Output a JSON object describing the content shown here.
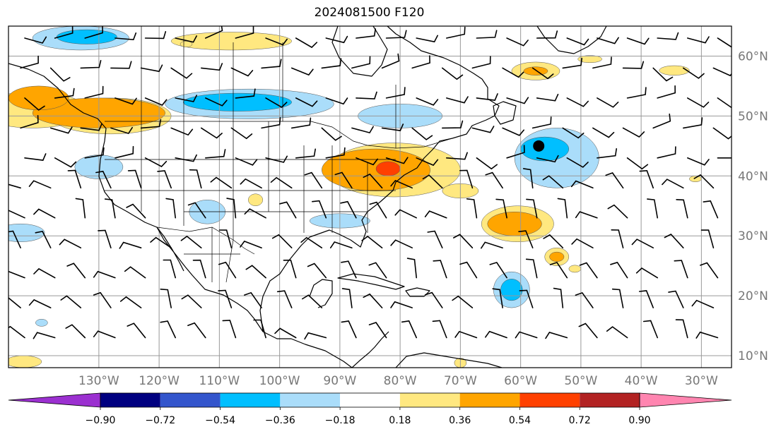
{
  "title": "2024081500 F120",
  "map": {
    "projection": "plate-carree",
    "lon_range": [
      -145,
      -25
    ],
    "lat_range": [
      8,
      65
    ],
    "latitude_labels": [
      "60°N",
      "50°N",
      "40°N",
      "30°N",
      "20°N",
      "10°N"
    ],
    "latitude_values": [
      60,
      50,
      40,
      30,
      20,
      10
    ],
    "longitude_labels": [
      "130°W",
      "120°W",
      "110°W",
      "100°W",
      "90°W",
      "80°W",
      "70°W",
      "60°W",
      "50°W",
      "40°W",
      "30°W"
    ],
    "longitude_values": [
      -130,
      -120,
      -110,
      -100,
      -90,
      -80,
      -70,
      -60,
      -50,
      -40,
      -30
    ],
    "marker": {
      "lon": -57,
      "lat": 45
    }
  },
  "colorbar": {
    "tick_labels": [
      "−0.90",
      "−0.72",
      "−0.54",
      "−0.36",
      "−0.18",
      "0.18",
      "0.36",
      "0.54",
      "0.72",
      "0.90"
    ],
    "colors": [
      "#9b30d0",
      "#000080",
      "#3355cc",
      "#00bfff",
      "#aaddfa",
      "#ffffff",
      "#ffe880",
      "#ffa500",
      "#ff4000",
      "#b22222",
      "#ff85b0"
    ]
  },
  "anomaly_regions": [
    {
      "color": "#ffe880",
      "cx": -141,
      "cy": 51,
      "rx": 9,
      "ry": 3
    },
    {
      "color": "#ffe880",
      "cx": -128,
      "cy": 50,
      "rx": 10,
      "ry": 3
    },
    {
      "color": "#ffa500",
      "cx": -130,
      "cy": 50.5,
      "rx": 11,
      "ry": 2.5
    },
    {
      "color": "#ffa500",
      "cx": -140,
      "cy": 53,
      "rx": 5,
      "ry": 2
    },
    {
      "color": "#ffe880",
      "cx": -108,
      "cy": 62.5,
      "rx": 10,
      "ry": 1.5
    },
    {
      "color": "#aaddfa",
      "cx": -133,
      "cy": 63,
      "rx": 8,
      "ry": 2
    },
    {
      "color": "#00bfff",
      "cx": -132,
      "cy": 63.2,
      "rx": 5,
      "ry": 1.2
    },
    {
      "color": "#aaddfa",
      "cx": -105,
      "cy": 52,
      "rx": 14,
      "ry": 2.5
    },
    {
      "color": "#00bfff",
      "cx": -107,
      "cy": 52.3,
      "rx": 9,
      "ry": 1.5
    },
    {
      "color": "#aaddfa",
      "cx": -80,
      "cy": 50,
      "rx": 7,
      "ry": 2
    },
    {
      "color": "#aaddfa",
      "cx": -130,
      "cy": 41.5,
      "rx": 4,
      "ry": 2
    },
    {
      "color": "#ffe880",
      "cx": -81,
      "cy": 41,
      "rx": 11,
      "ry": 4.5
    },
    {
      "color": "#ffa500",
      "cx": -84,
      "cy": 41,
      "rx": 9,
      "ry": 3.5
    },
    {
      "color": "#ff4000",
      "cx": -82,
      "cy": 41.2,
      "rx": 2,
      "ry": 1.2
    },
    {
      "color": "#aaddfa",
      "cx": -112,
      "cy": 34,
      "rx": 3,
      "ry": 2
    },
    {
      "color": "#ffe880",
      "cx": -104,
      "cy": 36,
      "rx": 1.2,
      "ry": 1
    },
    {
      "color": "#aaddfa",
      "cx": -90,
      "cy": 32.5,
      "rx": 5,
      "ry": 1.2
    },
    {
      "color": "#aaddfa",
      "cx": -143,
      "cy": 30.5,
      "rx": 4,
      "ry": 1.5
    },
    {
      "color": "#ffe880",
      "cx": -70,
      "cy": 37.5,
      "rx": 3,
      "ry": 1.2
    },
    {
      "color": "#ffe880",
      "cx": -60.5,
      "cy": 32,
      "rx": 6,
      "ry": 3
    },
    {
      "color": "#ffa500",
      "cx": -61,
      "cy": 32,
      "rx": 4.5,
      "ry": 2
    },
    {
      "color": "#aaddfa",
      "cx": -54,
      "cy": 43,
      "rx": 7,
      "ry": 5
    },
    {
      "color": "#00bfff",
      "cx": -56,
      "cy": 44.5,
      "rx": 4,
      "ry": 2
    },
    {
      "color": "#ffe880",
      "cx": -54,
      "cy": 26.5,
      "rx": 2,
      "ry": 1.5
    },
    {
      "color": "#ffa500",
      "cx": -54,
      "cy": 26.5,
      "rx": 1.2,
      "ry": 0.8
    },
    {
      "color": "#ffe880",
      "cx": -51,
      "cy": 24.5,
      "rx": 1,
      "ry": 0.6
    },
    {
      "color": "#aaddfa",
      "cx": -61.5,
      "cy": 21,
      "rx": 3,
      "ry": 3
    },
    {
      "color": "#00bfff",
      "cx": -61.5,
      "cy": 21,
      "rx": 1.8,
      "ry": 1.8
    },
    {
      "color": "#ffe880",
      "cx": -57.5,
      "cy": 57.5,
      "rx": 4,
      "ry": 1.5
    },
    {
      "color": "#ffa500",
      "cx": -57.5,
      "cy": 57.5,
      "rx": 2,
      "ry": 0.7
    },
    {
      "color": "#ffe880",
      "cx": -34.5,
      "cy": 57.6,
      "rx": 2.5,
      "ry": 0.8
    },
    {
      "color": "#ffe880",
      "cx": -48.5,
      "cy": 59.5,
      "rx": 2,
      "ry": 0.6
    },
    {
      "color": "#ffe880",
      "cx": -142.5,
      "cy": 9,
      "rx": 3,
      "ry": 1
    },
    {
      "color": "#aaddfa",
      "cx": -139.5,
      "cy": 15.5,
      "rx": 1,
      "ry": 0.6
    },
    {
      "color": "#ffe880",
      "cx": -115.5,
      "cy": 62,
      "rx": 1,
      "ry": 0.5
    },
    {
      "color": "#ffe880",
      "cx": -31,
      "cy": 39.5,
      "rx": 1,
      "ry": 0.5
    },
    {
      "color": "#ffe880",
      "cx": -70,
      "cy": 8.8,
      "rx": 1,
      "ry": 0.8
    }
  ]
}
